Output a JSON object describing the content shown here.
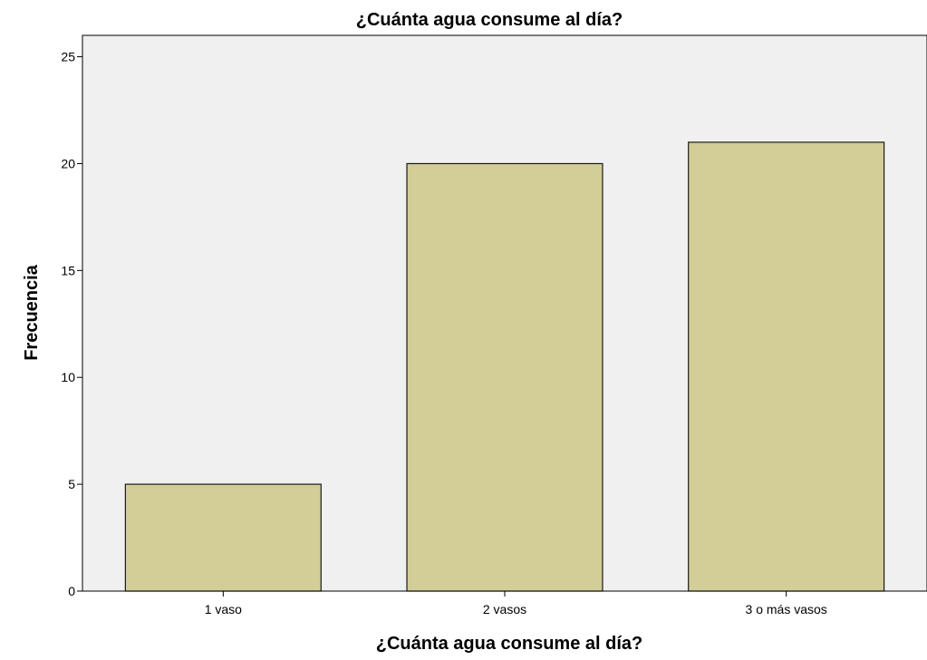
{
  "chart_data": {
    "type": "bar",
    "title": "¿Cuánta agua consume al día?",
    "xlabel": "¿Cuánta agua consume al día?",
    "ylabel": "Frecuencia",
    "categories": [
      "1 vaso",
      "2 vasos",
      "3 o más vasos"
    ],
    "values": [
      5,
      20,
      21
    ],
    "ylim": [
      0,
      26
    ],
    "yticks": [
      "0",
      "5",
      "10",
      "15",
      "20",
      "25"
    ],
    "grid": false,
    "legend": "none",
    "colors": {
      "bar_fill": "#d3cd98",
      "bar_stroke": "#1a1a1a",
      "plot_background": "#f0f0f0",
      "axis": "#000000"
    }
  }
}
